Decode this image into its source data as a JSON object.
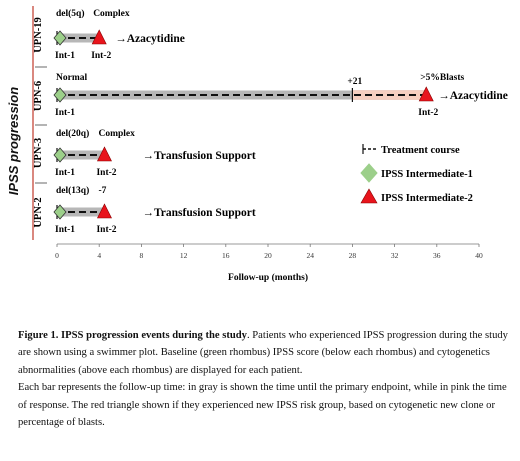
{
  "chart_data": {
    "type": "swimmer",
    "y_axis_title": "IPSS progression",
    "xlabel": "Follow-up (months)",
    "xlim": [
      0,
      40
    ],
    "x_ticks": [
      0,
      4,
      8,
      12,
      16,
      20,
      24,
      28,
      32,
      36,
      40
    ],
    "patients": [
      {
        "name": "UPN-19",
        "baseline_cyto": "del(5q)",
        "baseline_ipss": "Int-1",
        "endpoint": 4,
        "total": 4,
        "event_x": 4,
        "event_cyto": "Complex",
        "event_ipss": "Int-2",
        "outcome": "Azacytidine",
        "pink_label": ""
      },
      {
        "name": "UPN-6",
        "baseline_cyto": "Normal",
        "baseline_ipss": "Int-1",
        "endpoint": 28,
        "total": 35,
        "event_x": 35,
        "event_cyto": ">5%Blasts",
        "event_ipss": "Int-2",
        "outcome": "Azacytidine",
        "pink_label": "+21"
      },
      {
        "name": "UPN-3",
        "baseline_cyto": "del(20q)",
        "baseline_ipss": "Int-1",
        "endpoint": 4.5,
        "total": 4.5,
        "event_x": 4.5,
        "event_cyto": "Complex",
        "event_ipss": "Int-2",
        "outcome": "Transfusion Support",
        "pink_label": ""
      },
      {
        "name": "UPN-2",
        "baseline_cyto": "del(13q)",
        "baseline_ipss": "Int-1",
        "endpoint": 4.5,
        "total": 4.5,
        "event_x": 4.5,
        "event_cyto": "-7",
        "event_ipss": "Int-2",
        "outcome": "Transfusion Support",
        "pink_label": ""
      }
    ],
    "legend": [
      {
        "symbol": "treatment",
        "label": "Treatment course"
      },
      {
        "symbol": "rhombus",
        "label": "IPSS Intermediate-1",
        "color": "#9ccf8a"
      },
      {
        "symbol": "triangle",
        "label": "IPSS Intermediate-2",
        "color": "#e8141c"
      }
    ],
    "colors": {
      "gray_bar": "#b7b7b7",
      "pink_bar": "#f6cfc0",
      "axis_line": "#c0392b"
    }
  },
  "caption": {
    "lead": "Figure 1. IPSS progression events during the study",
    "text": ". Patients who experienced IPSS progression during the study are shown using a swimmer plot. Baseline (green rhombus) IPSS score (below each rhombus) and cytogenetics abnormalities (above each rhombus) are displayed for each patient.",
    "text2": "Each bar represents the follow-up time: in gray is shown the time until the primary endpoint, while in pink the time of response. The red triangle shown if they experienced new IPSS risk group, based on cytogenetic new clone or percentage  of blasts."
  }
}
